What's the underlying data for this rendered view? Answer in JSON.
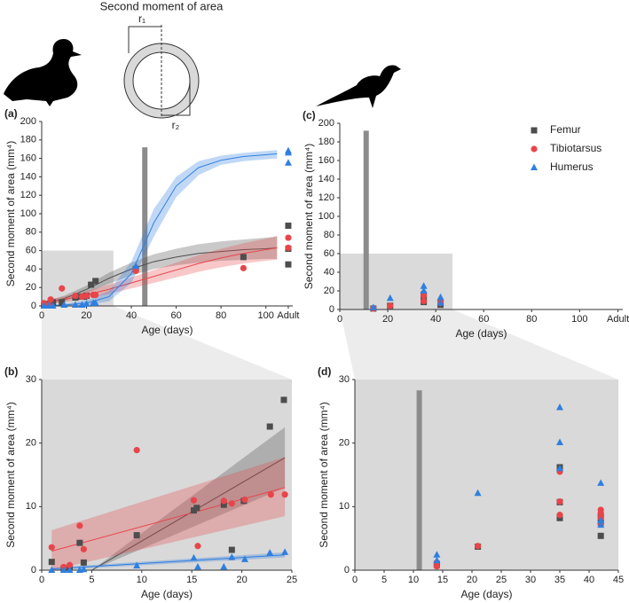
{
  "diagram": {
    "title": "Second moment of area",
    "labels": [
      "r₁",
      "r₂"
    ]
  },
  "chart_data": [
    {
      "type": "scatter",
      "label": "(a)",
      "xlabel": "Age (days)",
      "ylabel": "Second moment of area (mm⁴)",
      "xlim": [
        0,
        112
      ],
      "ylim": [
        0,
        200
      ],
      "xticks": [
        0,
        20,
        40,
        60,
        80,
        100,
        {
          "value": 110,
          "label": "Adult"
        }
      ],
      "yticks": [
        0,
        20,
        40,
        60,
        80,
        100,
        120,
        140,
        160,
        180,
        200
      ],
      "bar": {
        "x": 46,
        "top": 172
      },
      "zoom": {
        "xlim": [
          0,
          32
        ],
        "ylim": [
          0,
          60
        ]
      },
      "series": [
        {
          "name": "Femur",
          "color": "#4d4d4d",
          "marker": "square",
          "x": [
            1,
            2,
            3,
            5,
            9,
            15,
            16,
            19,
            20,
            22,
            24,
            42,
            90,
            110,
            110,
            110
          ],
          "values": [
            1,
            2,
            1,
            4,
            4,
            9,
            10,
            10,
            11,
            23,
            27,
            40,
            53,
            87,
            62,
            45
          ]
        },
        {
          "name": "Tibiotarsus",
          "color": "#e8454a",
          "marker": "circle",
          "x": [
            1,
            3,
            4,
            9,
            15,
            18,
            20,
            23,
            24,
            42,
            90,
            110,
            110
          ],
          "values": [
            3,
            1,
            7,
            19,
            11,
            10,
            11,
            12,
            12,
            38,
            41,
            74,
            63
          ]
        },
        {
          "name": "Humerus",
          "color": "#2f7fe0",
          "marker": "triangle",
          "x": [
            1,
            3,
            5,
            10,
            15,
            18,
            20,
            23,
            24,
            42,
            110,
            110,
            110
          ],
          "values": [
            0,
            0,
            0,
            1,
            1,
            1,
            2,
            3,
            3,
            43,
            168,
            166,
            155
          ]
        }
      ],
      "fits": [
        {
          "color": "#4d4d4d",
          "x": [
            0,
            10,
            20,
            30,
            40,
            50,
            60,
            70,
            80,
            90,
            100,
            105
          ],
          "values": [
            2,
            8,
            18,
            30,
            40,
            48,
            53,
            57,
            59,
            61,
            62,
            63
          ],
          "lower": [
            0,
            5,
            14,
            24,
            33,
            40,
            44,
            47,
            49,
            50,
            51,
            51
          ],
          "upper": [
            4,
            11,
            22,
            36,
            47,
            56,
            62,
            67,
            70,
            72,
            74,
            75
          ]
        },
        {
          "color": "#e8454a",
          "x": [
            0,
            10,
            20,
            30,
            40,
            50,
            60,
            70,
            80,
            90,
            100,
            105
          ],
          "values": [
            3,
            7,
            12,
            18,
            25,
            32,
            39,
            46,
            52,
            57,
            61,
            63
          ],
          "lower": [
            1,
            4,
            8,
            13,
            19,
            25,
            31,
            37,
            42,
            46,
            49,
            50
          ],
          "upper": [
            5,
            10,
            16,
            23,
            31,
            39,
            47,
            55,
            62,
            68,
            73,
            76
          ]
        },
        {
          "color": "#2f7fe0",
          "x": [
            0,
            10,
            20,
            30,
            40,
            50,
            60,
            70,
            80,
            90,
            100,
            105
          ],
          "values": [
            0,
            1,
            3,
            10,
            35,
            90,
            130,
            150,
            158,
            162,
            164,
            165
          ],
          "lower": [
            0,
            0,
            1,
            5,
            25,
            75,
            118,
            142,
            153,
            157,
            159,
            160
          ],
          "upper": [
            1,
            2,
            6,
            16,
            48,
            105,
            140,
            157,
            163,
            166,
            168,
            169
          ]
        }
      ]
    },
    {
      "type": "scatter",
      "label": "(b)",
      "xlabel": "Age (days)",
      "ylabel": "Second moment of area (mm⁴)",
      "xlim": [
        0,
        25
      ],
      "ylim": [
        0,
        30
      ],
      "background": "#d9d9d9",
      "xticks": [
        0,
        5,
        10,
        15,
        20,
        25
      ],
      "yticks": [
        0,
        10,
        20,
        30
      ],
      "series": [
        {
          "name": "Femur",
          "color": "#4d4d4d",
          "marker": "square",
          "x": [
            1,
            2.2,
            2.8,
            3.8,
            4.2,
            9.5,
            15.2,
            15.5,
            18.2,
            19,
            20.2,
            22.8,
            24.2
          ],
          "values": [
            1.3,
            0.3,
            0.5,
            4.3,
            1.2,
            5.5,
            9.4,
            9.8,
            10.3,
            3.2,
            10.9,
            22.6,
            26.8
          ]
        },
        {
          "name": "Tibiotarsus",
          "color": "#e8454a",
          "marker": "circle",
          "x": [
            1,
            2.2,
            2.8,
            3.8,
            4.2,
            9.5,
            15.2,
            15.6,
            18.2,
            19,
            20.3,
            22.9,
            24.3
          ],
          "values": [
            3.6,
            0.5,
            0.8,
            7,
            3.3,
            18.9,
            11,
            3.8,
            10.9,
            10.5,
            11.1,
            11.9,
            11.9
          ]
        },
        {
          "name": "Humerus",
          "color": "#2f7fe0",
          "marker": "triangle",
          "x": [
            1,
            2.2,
            2.8,
            3.8,
            4.2,
            9.5,
            15.2,
            15.6,
            18.2,
            19,
            20.3,
            22.8,
            24.3
          ],
          "values": [
            0,
            0,
            0,
            0,
            0.1,
            0.7,
            1.9,
            0.5,
            0.5,
            2,
            1.7,
            2.7,
            2.8
          ]
        }
      ],
      "fits": [
        {
          "color": "#4d4d4d",
          "x": [
            5,
            24.3
          ],
          "values": [
            0,
            17.7
          ],
          "lower": [
            0,
            13
          ],
          "upper": [
            0,
            22.5
          ]
        },
        {
          "color": "#e8454a",
          "x": [
            1,
            24.3
          ],
          "values": [
            3,
            13
          ],
          "lower": [
            0,
            8.5
          ],
          "upper": [
            6.3,
            17.8
          ]
        },
        {
          "color": "#2f7fe0",
          "x": [
            1,
            24.3
          ],
          "values": [
            0.2,
            2.4
          ],
          "lower": [
            0,
            2
          ],
          "upper": [
            0.4,
            2.8
          ]
        }
      ]
    },
    {
      "type": "scatter",
      "label": "(c)",
      "xlabel": "Age (days)",
      "ylabel": "Second moment of area (mm⁴)",
      "xlim": [
        0,
        118
      ],
      "ylim": [
        0,
        200
      ],
      "xticks": [
        0,
        20,
        40,
        60,
        80,
        100,
        {
          "value": 116,
          "label": "Adult"
        }
      ],
      "yticks": [
        0,
        20,
        40,
        60,
        80,
        100,
        120,
        140,
        160,
        180,
        200
      ],
      "bar": {
        "x": 11,
        "top": 192
      },
      "zoom": {
        "xlim": [
          0,
          47
        ],
        "ylim": [
          0,
          60
        ]
      },
      "legend": "top-right",
      "series": [
        {
          "name": "Femur",
          "color": "#4d4d4d",
          "marker": "square",
          "x": [
            14,
            21,
            35,
            35,
            35,
            42,
            42
          ],
          "values": [
            1,
            4,
            16,
            11,
            8,
            8,
            5
          ]
        },
        {
          "name": "Tibiotarsus",
          "color": "#e8454a",
          "marker": "circle",
          "x": [
            14,
            21,
            35,
            35,
            42,
            42
          ],
          "values": [
            1,
            4,
            15,
            9,
            9,
            7
          ]
        },
        {
          "name": "Humerus",
          "color": "#2f7fe0",
          "marker": "triangle",
          "x": [
            14,
            21,
            35,
            35,
            42,
            42
          ],
          "values": [
            2,
            12,
            25,
            20,
            13,
            7
          ]
        }
      ]
    },
    {
      "type": "scatter",
      "label": "(d)",
      "xlabel": "Age (days)",
      "ylabel": "Second moment of area (mm⁴)",
      "xlim": [
        0,
        45
      ],
      "ylim": [
        0,
        30
      ],
      "background": "#d9d9d9",
      "xticks": [
        0,
        5,
        10,
        15,
        20,
        25,
        30,
        35,
        40,
        45
      ],
      "yticks": [
        0,
        10,
        20,
        30
      ],
      "bar": {
        "x": 11,
        "top": 28.3
      },
      "series": [
        {
          "name": "Femur",
          "color": "#4d4d4d",
          "marker": "square",
          "x": [
            14,
            14,
            21,
            35,
            35,
            35,
            42,
            42,
            42
          ],
          "values": [
            1,
            0.8,
            3.7,
            16.2,
            10.7,
            8.2,
            8.5,
            7.5,
            5.4
          ]
        },
        {
          "name": "Tibiotarsus",
          "color": "#e8454a",
          "marker": "circle",
          "x": [
            14,
            14,
            21,
            35,
            35,
            35,
            42,
            42,
            42,
            42
          ],
          "values": [
            1.2,
            0.6,
            3.8,
            15.5,
            10.8,
            8.7,
            9.5,
            9,
            8.3,
            7.3
          ]
        },
        {
          "name": "Humerus",
          "color": "#2f7fe0",
          "marker": "triangle",
          "x": [
            14,
            14,
            21,
            35,
            35,
            35,
            42,
            42,
            42
          ],
          "values": [
            2.4,
            1.5,
            12.1,
            25.6,
            20.1,
            16,
            13.7,
            7.8,
            7.1
          ]
        }
      ]
    }
  ]
}
